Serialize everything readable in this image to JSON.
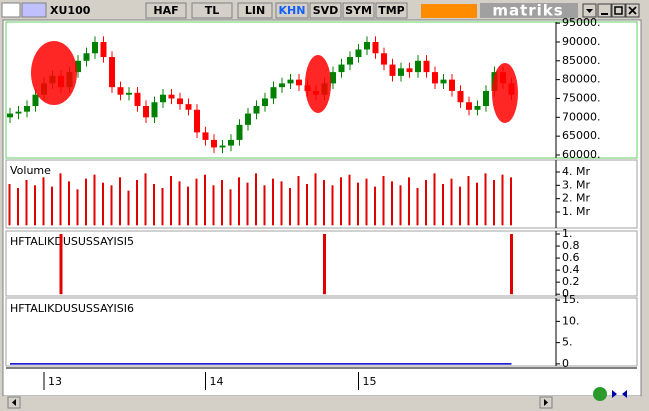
{
  "toolbar": {
    "symbol": "XU100",
    "buttons": [
      "HAF",
      "TL",
      "LIN",
      "KHN",
      "SVD",
      "SYM",
      "TMP"
    ],
    "logo": "matriks"
  },
  "chart_data": [
    {
      "type": "candlestick",
      "up_color": "#008000",
      "down_color": "#ff0000",
      "categories": [
        null,
        null,
        null,
        null,
        "13",
        null,
        null,
        null,
        null,
        null,
        null,
        null,
        null,
        null,
        null,
        null,
        null,
        null,
        null,
        null,
        null,
        null,
        null,
        "14",
        null,
        null,
        null,
        null,
        null,
        null,
        null,
        null,
        null,
        null,
        null,
        null,
        null,
        null,
        null,
        null,
        null,
        "15",
        null,
        null,
        null,
        null,
        null,
        null,
        null,
        null,
        null,
        null,
        null,
        null,
        null,
        null,
        null,
        null,
        null,
        null
      ],
      "open": [
        70000,
        71000,
        71500,
        73000,
        76000,
        79000,
        81000,
        78000,
        82000,
        85000,
        87000,
        90000,
        86000,
        78000,
        76000,
        76500,
        73000,
        70000,
        74000,
        76000,
        75000,
        73500,
        72000,
        66000,
        64000,
        62000,
        62500,
        64000,
        68000,
        71000,
        73000,
        75000,
        78000,
        79000,
        80000,
        78500,
        77000,
        76000,
        79000,
        82000,
        84000,
        86000,
        88000,
        90000,
        87000,
        84000,
        81000,
        83000,
        82000,
        85000,
        82000,
        79000,
        80000,
        77000,
        74000,
        72000,
        73000,
        77000,
        82000,
        79000
      ],
      "high": [
        72500,
        73000,
        74500,
        77500,
        80500,
        82500,
        82500,
        83500,
        86500,
        88500,
        91500,
        91500,
        87500,
        79500,
        78000,
        78000,
        74500,
        75500,
        77500,
        77500,
        76500,
        75000,
        73500,
        67500,
        65500,
        64000,
        65500,
        69500,
        72500,
        74500,
        76500,
        79500,
        80500,
        81500,
        81500,
        80000,
        78500,
        80500,
        83500,
        85500,
        87500,
        89500,
        91500,
        91500,
        88500,
        85500,
        84500,
        84500,
        86500,
        86500,
        83500,
        81500,
        81500,
        78500,
        75500,
        74500,
        78500,
        83500,
        83500,
        80500
      ],
      "low": [
        68500,
        69500,
        70000,
        71500,
        74500,
        77500,
        76500,
        76500,
        80500,
        83500,
        85500,
        84500,
        76500,
        74500,
        74500,
        71500,
        68500,
        68500,
        72500,
        73500,
        72000,
        70500,
        64500,
        62500,
        60500,
        60500,
        61000,
        62500,
        66500,
        69500,
        71500,
        73500,
        76500,
        77500,
        77000,
        75500,
        74500,
        74500,
        77500,
        80500,
        82500,
        84500,
        86500,
        85500,
        82500,
        79500,
        79500,
        80500,
        80500,
        80500,
        77500,
        77500,
        75500,
        72500,
        70500,
        70500,
        71500,
        75500,
        77500,
        74500
      ],
      "close": [
        71000,
        71500,
        73000,
        76000,
        79000,
        81000,
        78000,
        82000,
        85000,
        87000,
        90000,
        86000,
        78000,
        76000,
        76500,
        73000,
        70000,
        74000,
        76000,
        75000,
        73500,
        72000,
        66000,
        64000,
        62000,
        62500,
        64000,
        68000,
        71000,
        73000,
        75000,
        78000,
        79000,
        80000,
        78500,
        77000,
        76000,
        79000,
        82000,
        84000,
        86000,
        88000,
        90000,
        87000,
        84000,
        81000,
        83000,
        82000,
        85000,
        82000,
        79000,
        80000,
        77000,
        74000,
        72000,
        73000,
        77000,
        82000,
        79000,
        76000
      ],
      "ylim": [
        59200,
        95300
      ],
      "yticks": [
        {
          "value": 95000,
          "label": "95000."
        },
        {
          "value": 90000,
          "label": "90000."
        },
        {
          "value": 85000,
          "label": "85000."
        },
        {
          "value": 80000,
          "label": "80000."
        },
        {
          "value": 75000,
          "label": "75000."
        },
        {
          "value": 70000,
          "label": "70000."
        },
        {
          "value": 65000,
          "label": "65000."
        },
        {
          "value": 60000,
          "label": "60000."
        }
      ]
    },
    {
      "type": "bar",
      "title": "Volume",
      "color": "#e00000",
      "values": [
        3.1,
        2.8,
        3.4,
        3.0,
        3.6,
        2.9,
        3.9,
        3.3,
        2.7,
        3.5,
        3.8,
        3.2,
        3.0,
        3.6,
        2.6,
        3.4,
        3.9,
        3.1,
        2.8,
        3.7,
        3.3,
        2.9,
        3.5,
        3.8,
        3.0,
        3.4,
        2.7,
        3.6,
        3.2,
        3.9,
        3.0,
        3.5,
        3.3,
        2.8,
        3.7,
        3.1,
        3.9,
        3.4,
        3.0,
        3.6,
        3.8,
        3.2,
        3.5,
        2.9,
        3.7,
        3.3,
        3.0,
        3.6,
        2.8,
        3.4,
        3.9,
        3.1,
        3.5,
        2.9,
        3.7,
        3.2,
        3.9,
        3.4,
        3.8,
        3.6
      ],
      "ylim": [
        -0.2,
        4.9
      ],
      "yticks": [
        {
          "value": 4,
          "label": "4. Mr"
        },
        {
          "value": 3,
          "label": "3. Mr"
        },
        {
          "value": 2,
          "label": "2. Mr"
        },
        {
          "value": 1,
          "label": "1. Mr"
        }
      ]
    },
    {
      "type": "bar",
      "title": "HFTALIKDUSUSSAYISI5",
      "color": "#e00000",
      "values": [
        0,
        0,
        0,
        0,
        0,
        0,
        1,
        0,
        0,
        0,
        0,
        0,
        0,
        0,
        0,
        0,
        0,
        0,
        0,
        0,
        0,
        0,
        0,
        0,
        0,
        0,
        0,
        0,
        0,
        0,
        0,
        0,
        0,
        0,
        0,
        0,
        0,
        1,
        0,
        0,
        0,
        0,
        0,
        0,
        0,
        0,
        0,
        0,
        0,
        0,
        0,
        0,
        0,
        0,
        0,
        0,
        0,
        0,
        0,
        1
      ],
      "ylim": [
        -0.03,
        1.05
      ],
      "yticks": [
        {
          "value": 1,
          "label": "1."
        },
        0.8,
        0.6,
        0.4,
        0.2,
        0
      ]
    },
    {
      "type": "line",
      "title": "HFTALIKDUSUSSAYISI6",
      "color": "#0000cc",
      "values": [
        0,
        0,
        0,
        0,
        0,
        0,
        0,
        0,
        0,
        0,
        0,
        0,
        0,
        0,
        0,
        0,
        0,
        0,
        0,
        0,
        0,
        0,
        0,
        0,
        0,
        0,
        0,
        0,
        0,
        0,
        0,
        0,
        0,
        0,
        0,
        0,
        0,
        0,
        0,
        0,
        0,
        0,
        0,
        0,
        0,
        0,
        0,
        0,
        0,
        0,
        0,
        0,
        0,
        0,
        0,
        0,
        0,
        0,
        0,
        0
      ],
      "ylim": [
        -0.5,
        15.5
      ],
      "yticks": [
        {
          "value": 15,
          "label": "15."
        },
        {
          "value": 10,
          "label": "10."
        },
        {
          "value": 5,
          "label": "5."
        },
        0
      ]
    }
  ]
}
